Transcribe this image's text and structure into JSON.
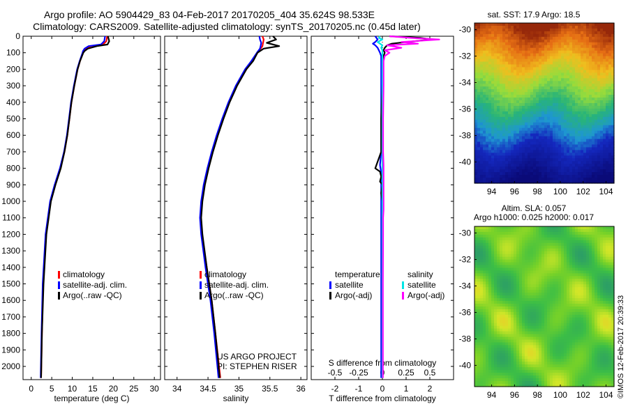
{
  "header": {
    "line1": "Argo profile: AO 5904429_83 04-Feb-2017 20170205_404 35.624S 98.533E",
    "line2": "Climatology: CARS2009. Satellite-adjusted climatology: synTS_20170205.nc (0.45d later)"
  },
  "colors": {
    "climatology": "#ff0000",
    "satellite": "#0000ff",
    "argo": "#000000",
    "sal_satellite": "#00e5e5",
    "sal_argo": "#ff00ff"
  },
  "depth_axis": {
    "ticks": [
      0,
      100,
      200,
      300,
      400,
      500,
      600,
      700,
      800,
      900,
      1000,
      1100,
      1200,
      1300,
      1400,
      1500,
      1600,
      1700,
      1800,
      1900,
      2000
    ]
  },
  "chart_data": [
    {
      "type": "line",
      "id": "temperature",
      "xlabel": "temperature (deg C)",
      "xlim": [
        -2,
        31.5
      ],
      "xticks": [
        0,
        5,
        10,
        15,
        20,
        25,
        30
      ],
      "ylim": [
        0,
        2080
      ],
      "depth": [
        0,
        30,
        50,
        60,
        75,
        90,
        100,
        150,
        200,
        300,
        400,
        500,
        600,
        700,
        800,
        900,
        1000,
        1200,
        1500,
        1800,
        2070
      ],
      "series": [
        {
          "name": "climatology",
          "color": "#ff0000",
          "values": [
            18.5,
            18.3,
            17.5,
            14.5,
            13.2,
            12.8,
            12.6,
            11.9,
            11.3,
            10.5,
            9.8,
            9.3,
            8.8,
            8.1,
            7.1,
            5.8,
            4.7,
            3.6,
            2.9,
            2.6,
            2.4
          ]
        },
        {
          "name": "satellite-adj. clim.",
          "color": "#0000ff",
          "values": [
            18.0,
            17.8,
            17.0,
            14.0,
            13.0,
            12.6,
            12.5,
            11.8,
            11.2,
            10.4,
            9.7,
            9.2,
            8.7,
            8.0,
            7.0,
            5.7,
            4.6,
            3.5,
            2.8,
            2.5,
            2.3
          ]
        },
        {
          "name": "Argo(..raw -QC)",
          "color": "#000000",
          "values": [
            18.7,
            19.0,
            18.6,
            16.0,
            13.8,
            13.0,
            12.7,
            11.9,
            11.3,
            10.5,
            9.8,
            9.3,
            8.8,
            8.1,
            7.2,
            5.9,
            4.8,
            3.7,
            3.0,
            2.6,
            2.4
          ]
        }
      ],
      "legend": [
        "climatology",
        "satellite-adj. clim.",
        "Argo(..raw -QC)"
      ]
    },
    {
      "type": "line",
      "id": "salinity",
      "xlabel": "salinity",
      "xlim": [
        33.8,
        36.1
      ],
      "xticks": [
        34,
        34.5,
        35,
        35.5,
        36
      ],
      "ylim": [
        0,
        2080
      ],
      "depth": [
        0,
        20,
        40,
        60,
        75,
        100,
        150,
        200,
        300,
        400,
        500,
        600,
        700,
        800,
        900,
        1000,
        1100,
        1200,
        1400,
        1600,
        1800,
        2070
      ],
      "series": [
        {
          "name": "climatology",
          "color": "#ff0000",
          "values": [
            35.38,
            35.4,
            35.39,
            35.38,
            35.35,
            35.3,
            35.22,
            35.12,
            34.96,
            34.84,
            34.74,
            34.65,
            34.57,
            34.5,
            34.44,
            34.4,
            34.38,
            34.4,
            34.48,
            34.56,
            34.62,
            34.7
          ]
        },
        {
          "name": "satellite-adj. clim.",
          "color": "#0000ff",
          "values": [
            35.33,
            35.34,
            35.36,
            35.35,
            35.34,
            35.29,
            35.2,
            35.1,
            34.95,
            34.83,
            34.73,
            34.64,
            34.56,
            34.49,
            34.43,
            34.39,
            34.37,
            34.39,
            34.46,
            34.54,
            34.6,
            34.67
          ]
        },
        {
          "name": "Argo(..raw -QC)",
          "color": "#000000",
          "values": [
            35.55,
            35.6,
            35.45,
            35.65,
            35.4,
            35.3,
            35.23,
            35.12,
            34.97,
            34.85,
            34.75,
            34.66,
            34.58,
            34.51,
            34.45,
            34.41,
            34.39,
            34.41,
            34.48,
            34.56,
            34.62,
            34.69
          ]
        }
      ],
      "legend": [
        "climatology",
        "satellite-adj. clim.",
        "Argo(..raw -QC)"
      ]
    },
    {
      "type": "line",
      "id": "difference",
      "xlabel": "T difference from climatology",
      "xlabel_top": "S difference from climatology",
      "xlim": [
        -3,
        3
      ],
      "xticks": [
        -2,
        -1,
        0,
        1,
        2
      ],
      "xticks_s": [
        -0.5,
        -0.25,
        0,
        0.25,
        0.5
      ],
      "ylim": [
        0,
        2080
      ],
      "depth": [
        0,
        10,
        20,
        35,
        45,
        55,
        70,
        85,
        100,
        120,
        150,
        200,
        300,
        500,
        700,
        780,
        800,
        820,
        850,
        880,
        900,
        950,
        1000,
        1050,
        1100,
        1200,
        1500,
        1800,
        2070
      ],
      "series": [
        {
          "name": "temperature satellite",
          "color": "#0000ff",
          "values": [
            -0.3,
            -0.25,
            -0.2,
            -0.3,
            -0.4,
            -0.3,
            -0.2,
            -0.15,
            -0.1,
            -0.05,
            -0.05,
            -0.05,
            -0.05,
            -0.05,
            -0.05,
            -0.1,
            -0.08,
            -0.06,
            -0.05,
            -0.05,
            -0.05,
            -0.05,
            -0.05,
            -0.05,
            -0.05,
            -0.05,
            -0.05,
            -0.05,
            -0.05
          ]
        },
        {
          "name": "temperature Argo(-adj)",
          "color": "#000000",
          "values": [
            0.3,
            1.6,
            2.1,
            1.0,
            0.4,
            0.2,
            0.1,
            0.05,
            0.1,
            0.05,
            0.0,
            0.02,
            0.0,
            -0.05,
            -0.05,
            -0.25,
            -0.3,
            -0.1,
            -0.05,
            -0.1,
            0.0,
            -0.05,
            0.0,
            0.0,
            0.0,
            0.0,
            0.0,
            0.0,
            0.0
          ]
        },
        {
          "name": "salinity satellite",
          "color": "#00e5e5",
          "values": [
            -0.1,
            -0.15,
            0.0,
            -0.2,
            -0.1,
            0.0,
            -0.05,
            0.0,
            0.0,
            0.0,
            0.0,
            0.0,
            0.0,
            0.0,
            0.0,
            0.0,
            0.0,
            0.0,
            0.0,
            0.0,
            0.0,
            0.0,
            0.0,
            0.0,
            0.0,
            0.0,
            0.0,
            0.0,
            0.0
          ]
        },
        {
          "name": "salinity Argo(-adj)",
          "color": "#ff00ff",
          "values": [
            0.3,
            1.2,
            2.4,
            0.8,
            1.5,
            0.2,
            0.8,
            0.1,
            0.3,
            0.1,
            0.05,
            0.05,
            0.05,
            0.03,
            0.03,
            0.05,
            0.05,
            0.05,
            0.05,
            0.05,
            0.05,
            0.05,
            0.05,
            0.05,
            0.03,
            0.03,
            0.02,
            0.02,
            0.02
          ]
        }
      ],
      "legend_groups": [
        "temperature",
        "salinity"
      ],
      "legend_entries": [
        [
          "satellite",
          "Argo(-adj)"
        ],
        [
          "satellite",
          "Argo(-adj)"
        ]
      ]
    }
  ],
  "credits": {
    "project": "US ARGO PROJECT",
    "pi": "PI: STEPHEN RISER"
  },
  "maps": {
    "sst_title": "sat. SST: 17.9  Argo: 18.5",
    "sla_title1": "Altim. SLA: 0.057",
    "sla_title2": "Argo h1000: 0.025 h2000: 0.017",
    "lat_ticks": [
      -30,
      -32,
      -34,
      -36,
      -38,
      -40
    ],
    "lon_ticks": [
      "94",
      "96",
      "98",
      "100",
      "102",
      "104"
    ],
    "lon_range": [
      92.5,
      104.7
    ],
    "lat_range": [
      -29.5,
      -41.6
    ],
    "argo_position": {
      "lat": -35.624,
      "lon": 98.533
    }
  },
  "footer": {
    "stamp": "©IMOS 12-Feb-2017 20:39:33"
  }
}
